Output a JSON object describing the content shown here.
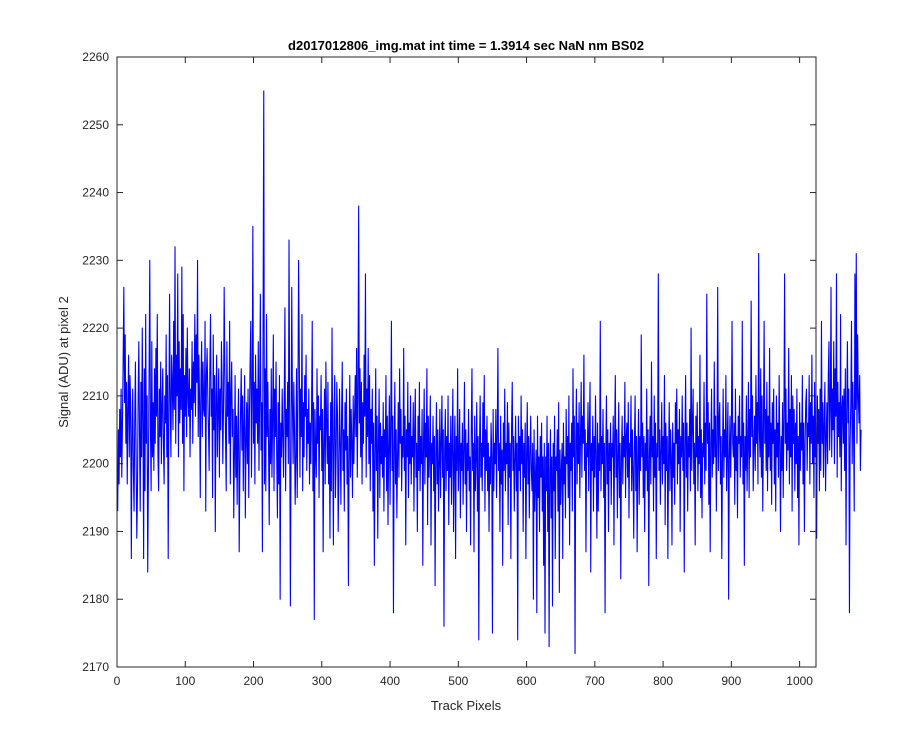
{
  "chart_data": {
    "type": "line",
    "title": "d2017012806_img.mat int time = 1.3914 sec  NaN nm BS02",
    "xlabel": "Track Pixels",
    "ylabel": "Signal (ADU) at pixel 2",
    "xlim": [
      0,
      1024
    ],
    "ylim": [
      2170,
      2260
    ],
    "grid": false,
    "legend": "none",
    "x_ticks": [
      0,
      100,
      200,
      300,
      400,
      500,
      600,
      700,
      800,
      900,
      1000
    ],
    "y_ticks": [
      2170,
      2180,
      2190,
      2200,
      2210,
      2220,
      2230,
      2240,
      2250,
      2260
    ],
    "x_tick_labels": [
      "0",
      "100",
      "200",
      "300",
      "400",
      "500",
      "600",
      "700",
      "800",
      "900",
      "1000"
    ],
    "y_tick_labels": [
      "2170",
      "2180",
      "2190",
      "2200",
      "2210",
      "2220",
      "2230",
      "2240",
      "2250",
      "2260"
    ],
    "series": [
      {
        "color": "#0000ff",
        "x_start": 1,
        "x_step": 1,
        "values": [
          2193,
          2205,
          2197,
          2208,
          2201,
          2211,
          2198,
          2206,
          2215,
          2226,
          2209,
          2219,
          2203,
          2212,
          2197,
          2208,
          2216,
          2201,
          2213,
          2209,
          2186,
          2204,
          2211,
          2199,
          2193,
          2207,
          2215,
          2201,
          2189,
          2196,
          2210,
          2218,
          2204,
          2193,
          2212,
          2201,
          2220,
          2207,
          2186,
          2214,
          2196,
          2222,
          2203,
          2210,
          2184,
          2198,
          2213,
          2230,
          2205,
          2196,
          2218,
          2201,
          2209,
          2199,
          2214,
          2203,
          2217,
          2207,
          2222,
          2201,
          2196,
          2211,
          2204,
          2215,
          2200,
          2208,
          2214,
          2203,
          2197,
          2210,
          2206,
          2219,
          2201,
          2213,
          2186,
          2207,
          2225,
          2209,
          2201,
          2216,
          2212,
          2205,
          2221,
          2208,
          2232,
          2203,
          2216,
          2210,
          2228,
          2201,
          2218,
          2206,
          2214,
          2208,
          2229,
          2203,
          2222,
          2196,
          2213,
          2207,
          2217,
          2204,
          2220,
          2210,
          2207,
          2214,
          2201,
          2211,
          2208,
          2218,
          2203,
          2215,
          2209,
          2222,
          2207,
          2219,
          2212,
          2230,
          2204,
          2216,
          2209,
          2195,
          2212,
          2218,
          2204,
          2215,
          2208,
          2207,
          2221,
          2193,
          2213,
          2217,
          2210,
          2205,
          2199,
          2214,
          2222,
          2207,
          2211,
          2195,
          2219,
          2205,
          2213,
          2190,
          2210,
          2216,
          2201,
          2208,
          2214,
          2198,
          2211,
          2205,
          2218,
          2212,
          2200,
          2208,
          2226,
          2214,
          2204,
          2196,
          2218,
          2207,
          2212,
          2203,
          2221,
          2197,
          2210,
          2215,
          2204,
          2208,
          2192,
          2201,
          2213,
          2198,
          2207,
          2194,
          2205,
          2211,
          2187,
          2199,
          2208,
          2214,
          2202,
          2210,
          2196,
          2206,
          2213,
          2192,
          2203,
          2209,
          2200,
          2211,
          2195,
          2207,
          2215,
          2221,
          2198,
          2209,
          2235,
          2203,
          2212,
          2197,
          2216,
          2206,
          2211,
          2203,
          2218,
          2199,
          2210,
          2225,
          2202,
          2209,
          2187,
          2221,
          2255,
          2197,
          2214,
          2196,
          2222,
          2204,
          2212,
          2203,
          2191,
          2208,
          2200,
          2214,
          2198,
          2207,
          2219,
          2196,
          2211,
          2204,
          2215,
          2201,
          2192,
          2209,
          2197,
          2213,
          2180,
          2206,
          2201,
          2211,
          2204,
          2198,
          2210,
          2223,
          2196,
          2208,
          2204,
          2212,
          2200,
          2233,
          2207,
          2179,
          2202,
          2226,
          2209,
          2200,
          2212,
          2205,
          2194,
          2201,
          2214,
          2195,
          2208,
          2230,
          2217,
          2198,
          2211,
          2204,
          2222,
          2196,
          2209,
          2201,
          2213,
          2207,
          2216,
          2199,
          2208,
          2203,
          2211,
          2197,
          2206,
          2200,
          2208,
          2221,
          2196,
          2209,
          2177,
          2208,
          2202,
          2198,
          2214,
          2203,
          2210,
          2195,
          2207,
          2205,
          2213,
          2199,
          2208,
          2187,
          2203,
          2211,
          2197,
          2215,
          2206,
          2200,
          2212,
          2197,
          2204,
          2189,
          2209,
          2196,
          2220,
          2203,
          2188,
          2208,
          2213,
          2195,
          2201,
          2212,
          2207,
          2190,
          2198,
          2211,
          2203,
          2194,
          2207,
          2215,
          2199,
          2205,
          2193,
          2209,
          2202,
          2211,
          2197,
          2204,
          2182,
          2201,
          2213,
          2198,
          2208,
          2203,
          2195,
          2210,
          2200,
          2207,
          2213,
          2204,
          2217,
          2198,
          2210,
          2238,
          2206,
          2214,
          2201,
          2212,
          2197,
          2209,
          2203,
          2216,
          2207,
          2228,
          2198,
          2211,
          2204,
          2217,
          2200,
          2213,
          2196,
          2208,
          2203,
          2211,
          2193,
          2206,
          2185,
          2201,
          2214,
          2199,
          2207,
          2189,
          2203,
          2211,
          2195,
          2206,
          2200,
          2204,
          2198,
          2209,
          2193,
          2205,
          2201,
          2213,
          2196,
          2207,
          2191,
          2203,
          2210,
          2194,
          2206,
          2221,
          2199,
          2207,
          2178,
          2202,
          2212,
          2197,
          2205,
          2192,
          2201,
          2209,
          2198,
          2214,
          2203,
          2208,
          2196,
          2204,
          2201,
          2217,
          2199,
          2207,
          2188,
          2205,
          2201,
          2212,
          2195,
          2206,
          2200,
          2210,
          2197,
          2204,
          2201,
          2209,
          2193,
          2205,
          2211,
          2198,
          2203,
          2190,
          2207,
          2199,
          2212,
          2196,
          2204,
          2200,
          2208,
          2185,
          2203,
          2211,
          2197,
          2206,
          2201,
          2214,
          2191,
          2207,
          2198,
          2202,
          2210,
          2188,
          2203,
          2200,
          2207,
          2196,
          2204,
          2182,
          2201,
          2209,
          2197,
          2205,
          2193,
          2200,
          2208,
          2195,
          2203,
          2210,
          2198,
          2205,
          2176,
          2202,
          2208,
          2196,
          2204,
          2199,
          2210,
          2191,
          2203,
          2198,
          2207,
          2194,
          2203,
          2211,
          2190,
          2201,
          2207,
          2186,
          2204,
          2199,
          2214,
          2196,
          2201,
          2208,
          2192,
          2203,
          2199,
          2206,
          2194,
          2202,
          2212,
          2197,
          2205,
          2190,
          2203,
          2199,
          2208,
          2196,
          2201,
          2188,
          2205,
          2214,
          2199,
          2203,
          2187,
          2207,
          2196,
          2201,
          2209,
          2193,
          2204,
          2174,
          2202,
          2210,
          2198,
          2203,
          2196,
          2209,
          2201,
          2213,
          2193,
          2205,
          2199,
          2207,
          2196,
          2203,
          2190,
          2201,
          2197,
          2206,
          2201,
          2175,
          2208,
          2196,
          2203,
          2200,
          2208,
          2195,
          2204,
          2217,
          2199,
          2203,
          2190,
          2207,
          2197,
          2202,
          2185,
          2206,
          2199,
          2211,
          2196,
          2203,
          2200,
          2209,
          2191,
          2206,
          2198,
          2203,
          2186,
          2205,
          2212,
          2199,
          2204,
          2193,
          2201,
          2207,
          2196,
          2203,
          2174,
          2207,
          2199,
          2204,
          2196,
          2210,
          2200,
          2205,
          2190,
          2203,
          2198,
          2206,
          2186,
          2201,
          2209,
          2197,
          2204,
          2192,
          2201,
          2207,
          2199,
          2196,
          2203,
          2180,
          2205,
          2193,
          2198,
          2202,
          2178,
          2207,
          2195,
          2201,
          2190,
          2204,
          2198,
          2206,
          2193,
          2201,
          2185,
          2203,
          2175,
          2201,
          2196,
          2207,
          2190,
          2203,
          2173,
          2199,
          2205,
          2192,
          2201,
          2179,
          2203,
          2196,
          2207,
          2186,
          2201,
          2199,
          2205,
          2193,
          2209,
          2181,
          2202,
          2194,
          2199,
          2203,
          2186,
          2206,
          2197,
          2201,
          2192,
          2208,
          2200,
          2204,
          2195,
          2210,
          2188,
          2203,
          2199,
          2206,
          2193,
          2214,
          2201,
          2207,
          2172,
          2203,
          2211,
          2197,
          2206,
          2200,
          2209,
          2195,
          2204,
          2212,
          2198,
          2207,
          2203,
          2216,
          2199,
          2205,
          2187,
          2203,
          2201,
          2209,
          2196,
          2205,
          2212,
          2184,
          2203,
          2199,
          2207,
          2193,
          2204,
          2198,
          2210,
          2201,
          2189,
          2206,
          2193,
          2203,
          2199,
          2221,
          2196,
          2204,
          2200,
          2208,
          2195,
          2203,
          2178,
          2201,
          2210,
          2197,
          2205,
          2190,
          2203,
          2199,
          2206,
          2194,
          2203,
          2201,
          2207,
          2188,
          2204,
          2213,
          2198,
          2205,
          2192,
          2201,
          2209,
          2195,
          2203,
          2183,
          2201,
          2207,
          2197,
          2204,
          2201,
          2212,
          2195,
          2204,
          2206,
          2198,
          2209,
          2192,
          2203,
          2201,
          2210,
          2196,
          2205,
          2199,
          2189,
          2203,
          2210,
          2196,
          2204,
          2187,
          2201,
          2208,
          2194,
          2204,
          2199,
          2219,
          2201,
          2206,
          2195,
          2204,
          2190,
          2203,
          2199,
          2211,
          2196,
          2205,
          2182,
          2201,
          2207,
          2197,
          2215,
          2201,
          2204,
          2193,
          2210,
          2198,
          2206,
          2186,
          2203,
          2201,
          2228,
          2199,
          2205,
          2194,
          2202,
          2209,
          2197,
          2204,
          2200,
          2213,
          2191,
          2206,
          2199,
          2204,
          2186,
          2201,
          2209,
          2196,
          2205,
          2201,
          2188,
          2206,
          2198,
          2203,
          2194,
          2209,
          2203,
          2211,
          2197,
          2205,
          2200,
          2208,
          2190,
          2204,
          2201,
          2210,
          2199,
          2206,
          2184,
          2203,
          2213,
          2198,
          2206,
          2193,
          2204,
          2201,
          2208,
          2196,
          2220,
          2199,
          2206,
          2211,
          2197,
          2203,
          2188,
          2207,
          2201,
          2209,
          2196,
          2204,
          2200,
          2216,
          2195,
          2205,
          2192,
          2203,
          2201,
          2212,
          2197,
          2206,
          2199,
          2225,
          2203,
          2209,
          2194,
          2206,
          2187,
          2203,
          2211,
          2198,
          2205,
          2200,
          2215,
          2201,
          2207,
          2193,
          2203,
          2226,
          2199,
          2206,
          2209,
          2197,
          2204,
          2186,
          2201,
          2211,
          2198,
          2205,
          2201,
          2213,
          2196,
          2203,
          2209,
          2180,
          2201,
          2207,
          2198,
          2205,
          2221,
          2203,
          2201,
          2206,
          2194,
          2211,
          2199,
          2204,
          2192,
          2207,
          2203,
          2210,
          2198,
          2204,
          2201,
          2221,
          2197,
          2206,
          2185,
          2204,
          2199,
          2210,
          2196,
          2203,
          2212,
          2195,
          2208,
          2201,
          2224,
          2204,
          2210,
          2196,
          2203,
          2207,
          2199,
          2213,
          2203,
          2209,
          2197,
          2231,
          2205,
          2201,
          2214,
          2198,
          2210,
          2193,
          2205,
          2221,
          2203,
          2208,
          2199,
          2212,
          2196,
          2207,
          2201,
          2217,
          2199,
          2206,
          2194,
          2209,
          2203,
          2211,
          2197,
          2205,
          2193,
          2210,
          2201,
          2206,
          2198,
          2213,
          2203,
          2190,
          2204,
          2199,
          2209,
          2195,
          2207,
          2228,
          2203,
          2211,
          2199,
          2206,
          2202,
          2217,
          2197,
          2208,
          2201,
          2213,
          2193,
          2210,
          2203,
          2208,
          2196,
          2206,
          2200,
          2211,
          2195,
          2204,
          2188,
          2209,
          2199,
          2206,
          2202,
          2213,
          2197,
          2206,
          2190,
          2203,
          2209,
          2211,
          2199,
          2206,
          2204,
          2213,
          2197,
          2209,
          2203,
          2216,
          2200,
          2207,
          2195,
          2212,
          2201,
          2206,
          2189,
          2210,
          2203,
          2208,
          2196,
          2211,
          2199,
          2221,
          2203,
          2209,
          2198,
          2206,
          2212,
          2196,
          2204,
          2209,
          2200,
          2213,
          2218,
          2202,
          2208,
          2226,
          2201,
          2211,
          2205,
          2218,
          2200,
          2214,
          2207,
          2228,
          2198,
          2212,
          2204,
          2209,
          2201,
          2222,
          2196,
          2208,
          2210,
          2203,
          2211,
          2199,
          2214,
          2188,
          2208,
          2218,
          2206,
          2211,
          2178,
          2203,
          2209,
          2221,
          2200,
          2212,
          2205,
          2193,
          2228,
          2208,
          2231,
          2203,
          2219,
          2210,
          2206,
          2213,
          2199,
          2205
        ]
      }
    ]
  }
}
